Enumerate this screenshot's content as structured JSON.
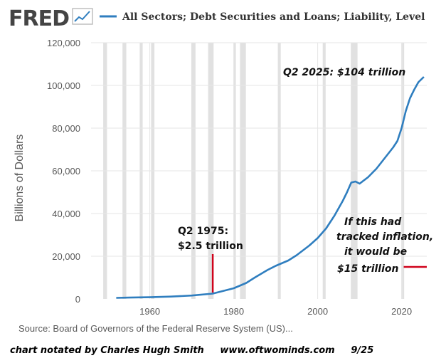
{
  "chart_data": {
    "type": "line",
    "logo": "FRED",
    "title": "All Sectors; Debt Securities and Loans; Liability, Level",
    "ylabel": "Billions of Dollars",
    "xlabel": "",
    "xlim": [
      1946,
      2026
    ],
    "ylim": [
      0,
      120000
    ],
    "x_ticks": [
      1960,
      1980,
      2000,
      2020
    ],
    "y_ticks": [
      {
        "value": 0,
        "label": "0"
      },
      {
        "value": 20000,
        "label": "20,000"
      },
      {
        "value": 40000,
        "label": "40,000"
      },
      {
        "value": 60000,
        "label": "60,000"
      },
      {
        "value": 80000,
        "label": "80,000"
      },
      {
        "value": 100000,
        "label": "100,000"
      },
      {
        "value": 120000,
        "label": "120,000"
      }
    ],
    "recessions": [
      [
        1948.9,
        1949.8
      ],
      [
        1953.5,
        1954.4
      ],
      [
        1957.6,
        1958.3
      ],
      [
        1960.3,
        1961.1
      ],
      [
        1969.9,
        1970.9
      ],
      [
        1973.9,
        1975.2
      ],
      [
        1980.0,
        1980.5
      ],
      [
        1981.5,
        1982.9
      ],
      [
        1990.5,
        1991.2
      ],
      [
        2001.2,
        2001.9
      ],
      [
        2007.9,
        2009.5
      ],
      [
        2020.1,
        2020.4
      ]
    ],
    "series": [
      {
        "color": "#2f7ebf",
        "x": [
          1952,
          1955,
          1960,
          1965,
          1970,
          1975,
          1978,
          1980,
          1983,
          1985,
          1988,
          1990,
          1993,
          1995,
          1998,
          2000,
          2002,
          2004,
          2006,
          2007,
          2008,
          2009,
          2010,
          2012,
          2014,
          2016,
          2018,
          2019,
          2020,
          2021,
          2022,
          2023,
          2024,
          2025.3
        ],
        "y": [
          500,
          650,
          800,
          1100,
          1600,
          2500,
          4000,
          5000,
          7500,
          10000,
          13500,
          15500,
          18000,
          20500,
          25000,
          28500,
          33000,
          39000,
          46000,
          50000,
          54500,
          55000,
          54000,
          57000,
          61000,
          66000,
          71000,
          74000,
          80000,
          88000,
          94000,
          98000,
          101500,
          104000
        ]
      }
    ],
    "annotations": [
      {
        "lines": [
          "Q2 2025: $104 trillion"
        ],
        "style": "italic"
      },
      {
        "lines": [
          "Q2 1975:",
          "$2.5 trillion"
        ],
        "style": "normal"
      },
      {
        "lines": [
          "If this had",
          "tracked inflation,",
          "it would be",
          "$15 trillion"
        ],
        "style": "italic"
      }
    ],
    "markers": [
      {
        "type": "vertical",
        "x": 1975,
        "y_from": 3000,
        "y_to": 21000,
        "color": "#d0021b"
      },
      {
        "type": "horizontal",
        "y": 15000,
        "x_from": 2020.5,
        "x_to": 2026,
        "color": "#d0021b"
      }
    ],
    "source": "Source: Board of Governors of the Federal Reserve System (US)...",
    "footer": "chart notated by Charles Hugh Smith     www.oftwominds.com     9/25"
  }
}
